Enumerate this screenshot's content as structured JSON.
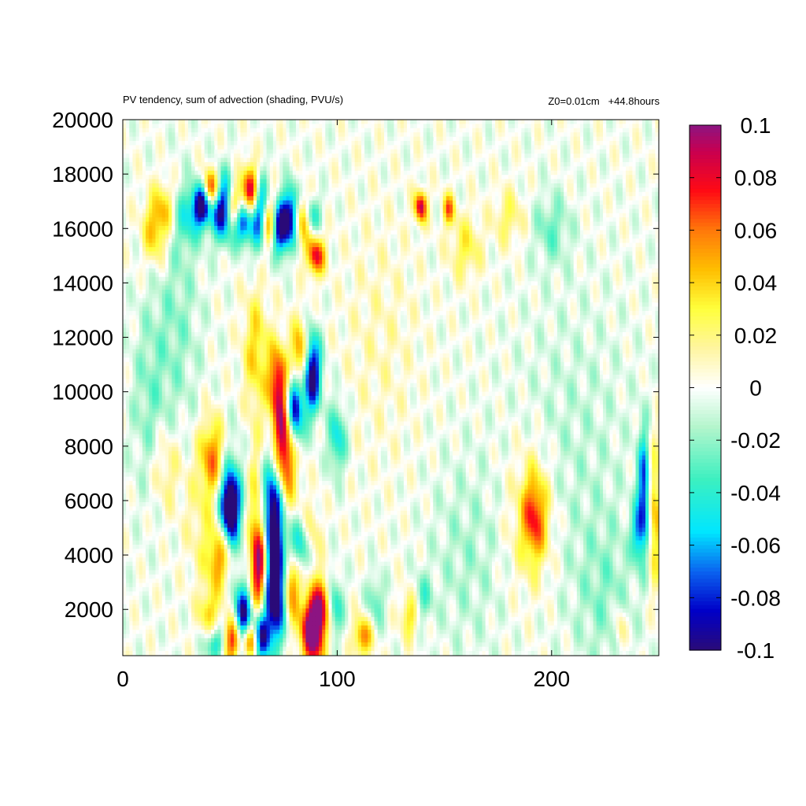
{
  "chart_data": {
    "type": "heatmap",
    "title": "PV tendency, sum of advection (shading, PVU/s)",
    "subtitle": "Z0=0.01cm   +44.8hours",
    "xlabel": "",
    "ylabel": "",
    "xlim": [
      0,
      250
    ],
    "ylim": [
      300,
      20000
    ],
    "x_ticks": [
      0,
      100,
      200
    ],
    "y_ticks": [
      2000,
      4000,
      6000,
      8000,
      10000,
      12000,
      14000,
      16000,
      18000,
      20000
    ],
    "grid": false,
    "colorbar": {
      "range": [
        -0.1,
        0.1
      ],
      "ticks": [
        0.1,
        0.08,
        0.06,
        0.04,
        0.02,
        0,
        -0.02,
        -0.04,
        -0.06,
        -0.08,
        -0.1
      ],
      "tick_labels": [
        "0.1",
        "0.08",
        "0.06",
        "0.04",
        "0.02",
        "0",
        "-0.02",
        "-0.04",
        "-0.06",
        "-0.08",
        "-0.1"
      ],
      "colors": [
        [
          -0.1,
          "#2a0a78"
        ],
        [
          -0.085,
          "#0000c8"
        ],
        [
          -0.07,
          "#0a64f0"
        ],
        [
          -0.055,
          "#00e6ff"
        ],
        [
          -0.035,
          "#3cf0c0"
        ],
        [
          -0.015,
          "#b4f5cc"
        ],
        [
          0,
          "#ffffff"
        ],
        [
          0.015,
          "#fff5a0"
        ],
        [
          0.03,
          "#ffff3c"
        ],
        [
          0.045,
          "#ffbe00"
        ],
        [
          0.06,
          "#ff780a"
        ],
        [
          0.075,
          "#ff0a14"
        ],
        [
          0.09,
          "#c80050"
        ],
        [
          0.1,
          "#8c1482"
        ]
      ]
    },
    "features": [
      {
        "x": 37,
        "y": 16900,
        "sx": 3,
        "sy": 550,
        "value": -0.12
      },
      {
        "x": 41,
        "y": 17400,
        "sx": 3,
        "sy": 500,
        "value": 0.11
      },
      {
        "x": 47,
        "y": 16800,
        "sx": 4,
        "sy": 800,
        "value": -0.12
      },
      {
        "x": 52,
        "y": 16800,
        "sx": 3,
        "sy": 600,
        "value": 0.1
      },
      {
        "x": 56,
        "y": 16300,
        "sx": 3,
        "sy": 600,
        "value": -0.1
      },
      {
        "x": 60,
        "y": 17300,
        "sx": 3,
        "sy": 700,
        "value": 0.11
      },
      {
        "x": 64,
        "y": 16600,
        "sx": 3,
        "sy": 900,
        "value": -0.12
      },
      {
        "x": 68,
        "y": 16200,
        "sx": 3,
        "sy": 700,
        "value": 0.1
      },
      {
        "x": 73,
        "y": 16000,
        "sx": 3,
        "sy": 700,
        "value": -0.11
      },
      {
        "x": 79,
        "y": 16500,
        "sx": 3,
        "sy": 700,
        "value": -0.11
      },
      {
        "x": 83,
        "y": 16400,
        "sx": 3,
        "sy": 600,
        "value": 0.09
      },
      {
        "x": 90,
        "y": 15000,
        "sx": 3,
        "sy": 500,
        "value": 0.08
      },
      {
        "x": 88,
        "y": 16500,
        "sx": 3,
        "sy": 500,
        "value": -0.05
      },
      {
        "x": 15,
        "y": 16000,
        "sx": 4,
        "sy": 900,
        "value": 0.05
      },
      {
        "x": 20,
        "y": 16800,
        "sx": 3,
        "sy": 700,
        "value": 0.03
      },
      {
        "x": 30,
        "y": 16400,
        "sx": 4,
        "sy": 800,
        "value": -0.035
      },
      {
        "x": 139,
        "y": 16800,
        "sx": 2,
        "sy": 400,
        "value": 0.09
      },
      {
        "x": 152,
        "y": 16700,
        "sx": 2,
        "sy": 400,
        "value": 0.06
      },
      {
        "x": 160,
        "y": 15300,
        "sx": 5,
        "sy": 800,
        "value": 0.03
      },
      {
        "x": 180,
        "y": 16400,
        "sx": 5,
        "sy": 700,
        "value": 0.025
      },
      {
        "x": 200,
        "y": 16000,
        "sx": 6,
        "sy": 900,
        "value": -0.025
      },
      {
        "x": 83,
        "y": 11200,
        "sx": 3,
        "sy": 900,
        "value": 0.08
      },
      {
        "x": 88,
        "y": 10700,
        "sx": 3,
        "sy": 1000,
        "value": -0.12
      },
      {
        "x": 72,
        "y": 10500,
        "sx": 3,
        "sy": 900,
        "value": 0.06
      },
      {
        "x": 80,
        "y": 9400,
        "sx": 3,
        "sy": 1000,
        "value": -0.12
      },
      {
        "x": 75,
        "y": 8000,
        "sx": 4,
        "sy": 1600,
        "value": 0.12
      },
      {
        "x": 70,
        "y": 5800,
        "sx": 4,
        "sy": 1500,
        "value": -0.13
      },
      {
        "x": 63,
        "y": 5900,
        "sx": 4,
        "sy": 1700,
        "value": 0.05
      },
      {
        "x": 62,
        "y": 11500,
        "sx": 4,
        "sy": 1500,
        "value": 0.04
      },
      {
        "x": 50,
        "y": 5800,
        "sx": 3,
        "sy": 900,
        "value": -0.12
      },
      {
        "x": 50,
        "y": 5800,
        "sx": 8,
        "sy": 1800,
        "value": -0.03
      },
      {
        "x": 42,
        "y": 7600,
        "sx": 4,
        "sy": 1000,
        "value": 0.06
      },
      {
        "x": 45,
        "y": 3900,
        "sx": 4,
        "sy": 900,
        "value": 0.06
      },
      {
        "x": 38,
        "y": 5500,
        "sx": 6,
        "sy": 1800,
        "value": 0.025
      },
      {
        "x": 64,
        "y": 3500,
        "sx": 3,
        "sy": 1200,
        "value": 0.11
      },
      {
        "x": 71,
        "y": 2700,
        "sx": 4,
        "sy": 1300,
        "value": -0.13
      },
      {
        "x": 78,
        "y": 3000,
        "sx": 3,
        "sy": 1000,
        "value": 0.08
      },
      {
        "x": 89,
        "y": 1300,
        "sx": 4,
        "sy": 900,
        "value": 0.13
      },
      {
        "x": 94,
        "y": 2300,
        "sx": 3,
        "sy": 700,
        "value": 0.06
      },
      {
        "x": 98,
        "y": 2100,
        "sx": 3,
        "sy": 800,
        "value": -0.06
      },
      {
        "x": 56,
        "y": 1500,
        "sx": 3,
        "sy": 900,
        "value": -0.12
      },
      {
        "x": 52,
        "y": 900,
        "sx": 3,
        "sy": 600,
        "value": 0.1
      },
      {
        "x": 60,
        "y": 900,
        "sx": 3,
        "sy": 500,
        "value": 0.12
      },
      {
        "x": 64,
        "y": 1000,
        "sx": 3,
        "sy": 600,
        "value": -0.12
      },
      {
        "x": 43,
        "y": 700,
        "sx": 3,
        "sy": 400,
        "value": -0.05
      },
      {
        "x": 40,
        "y": 1900,
        "sx": 3,
        "sy": 500,
        "value": 0.04
      },
      {
        "x": 82,
        "y": 4300,
        "sx": 4,
        "sy": 700,
        "value": -0.06
      },
      {
        "x": 88,
        "y": 4700,
        "sx": 3,
        "sy": 800,
        "value": 0.03
      },
      {
        "x": 100,
        "y": 8300,
        "sx": 3,
        "sy": 900,
        "value": -0.05
      },
      {
        "x": 112,
        "y": 1000,
        "sx": 3,
        "sy": 500,
        "value": 0.06
      },
      {
        "x": 118,
        "y": 2300,
        "sx": 3,
        "sy": 700,
        "value": -0.03
      },
      {
        "x": 134,
        "y": 1800,
        "sx": 3,
        "sy": 600,
        "value": 0.04
      },
      {
        "x": 140,
        "y": 2400,
        "sx": 3,
        "sy": 600,
        "value": -0.03
      },
      {
        "x": 192,
        "y": 5400,
        "sx": 4,
        "sy": 1100,
        "value": 0.06
      },
      {
        "x": 190,
        "y": 5400,
        "sx": 8,
        "sy": 1900,
        "value": 0.025
      },
      {
        "x": 243,
        "y": 6300,
        "sx": 2,
        "sy": 1500,
        "value": -0.08
      },
      {
        "x": 240,
        "y": 4800,
        "sx": 2,
        "sy": 700,
        "value": -0.05
      },
      {
        "x": 248,
        "y": 5500,
        "sx": 2,
        "sy": 1800,
        "value": 0.05
      },
      {
        "x": 232,
        "y": 1300,
        "sx": 2,
        "sy": 600,
        "value": 0.03
      },
      {
        "x": 20,
        "y": 7200,
        "sx": 5,
        "sy": 1100,
        "value": 0.025
      },
      {
        "x": 12,
        "y": 9500,
        "sx": 6,
        "sy": 2500,
        "value": -0.02
      },
      {
        "x": 25,
        "y": 12500,
        "sx": 8,
        "sy": 3000,
        "value": -0.02
      },
      {
        "x": 120,
        "y": 12000,
        "sx": 12,
        "sy": 3000,
        "value": 0.01
      },
      {
        "x": 210,
        "y": 8000,
        "sx": 20,
        "sy": 4000,
        "value": -0.012
      },
      {
        "x": 160,
        "y": 4000,
        "sx": 12,
        "sy": 2500,
        "value": -0.015
      },
      {
        "x": 225,
        "y": 2500,
        "sx": 10,
        "sy": 2000,
        "value": -0.018
      }
    ]
  }
}
